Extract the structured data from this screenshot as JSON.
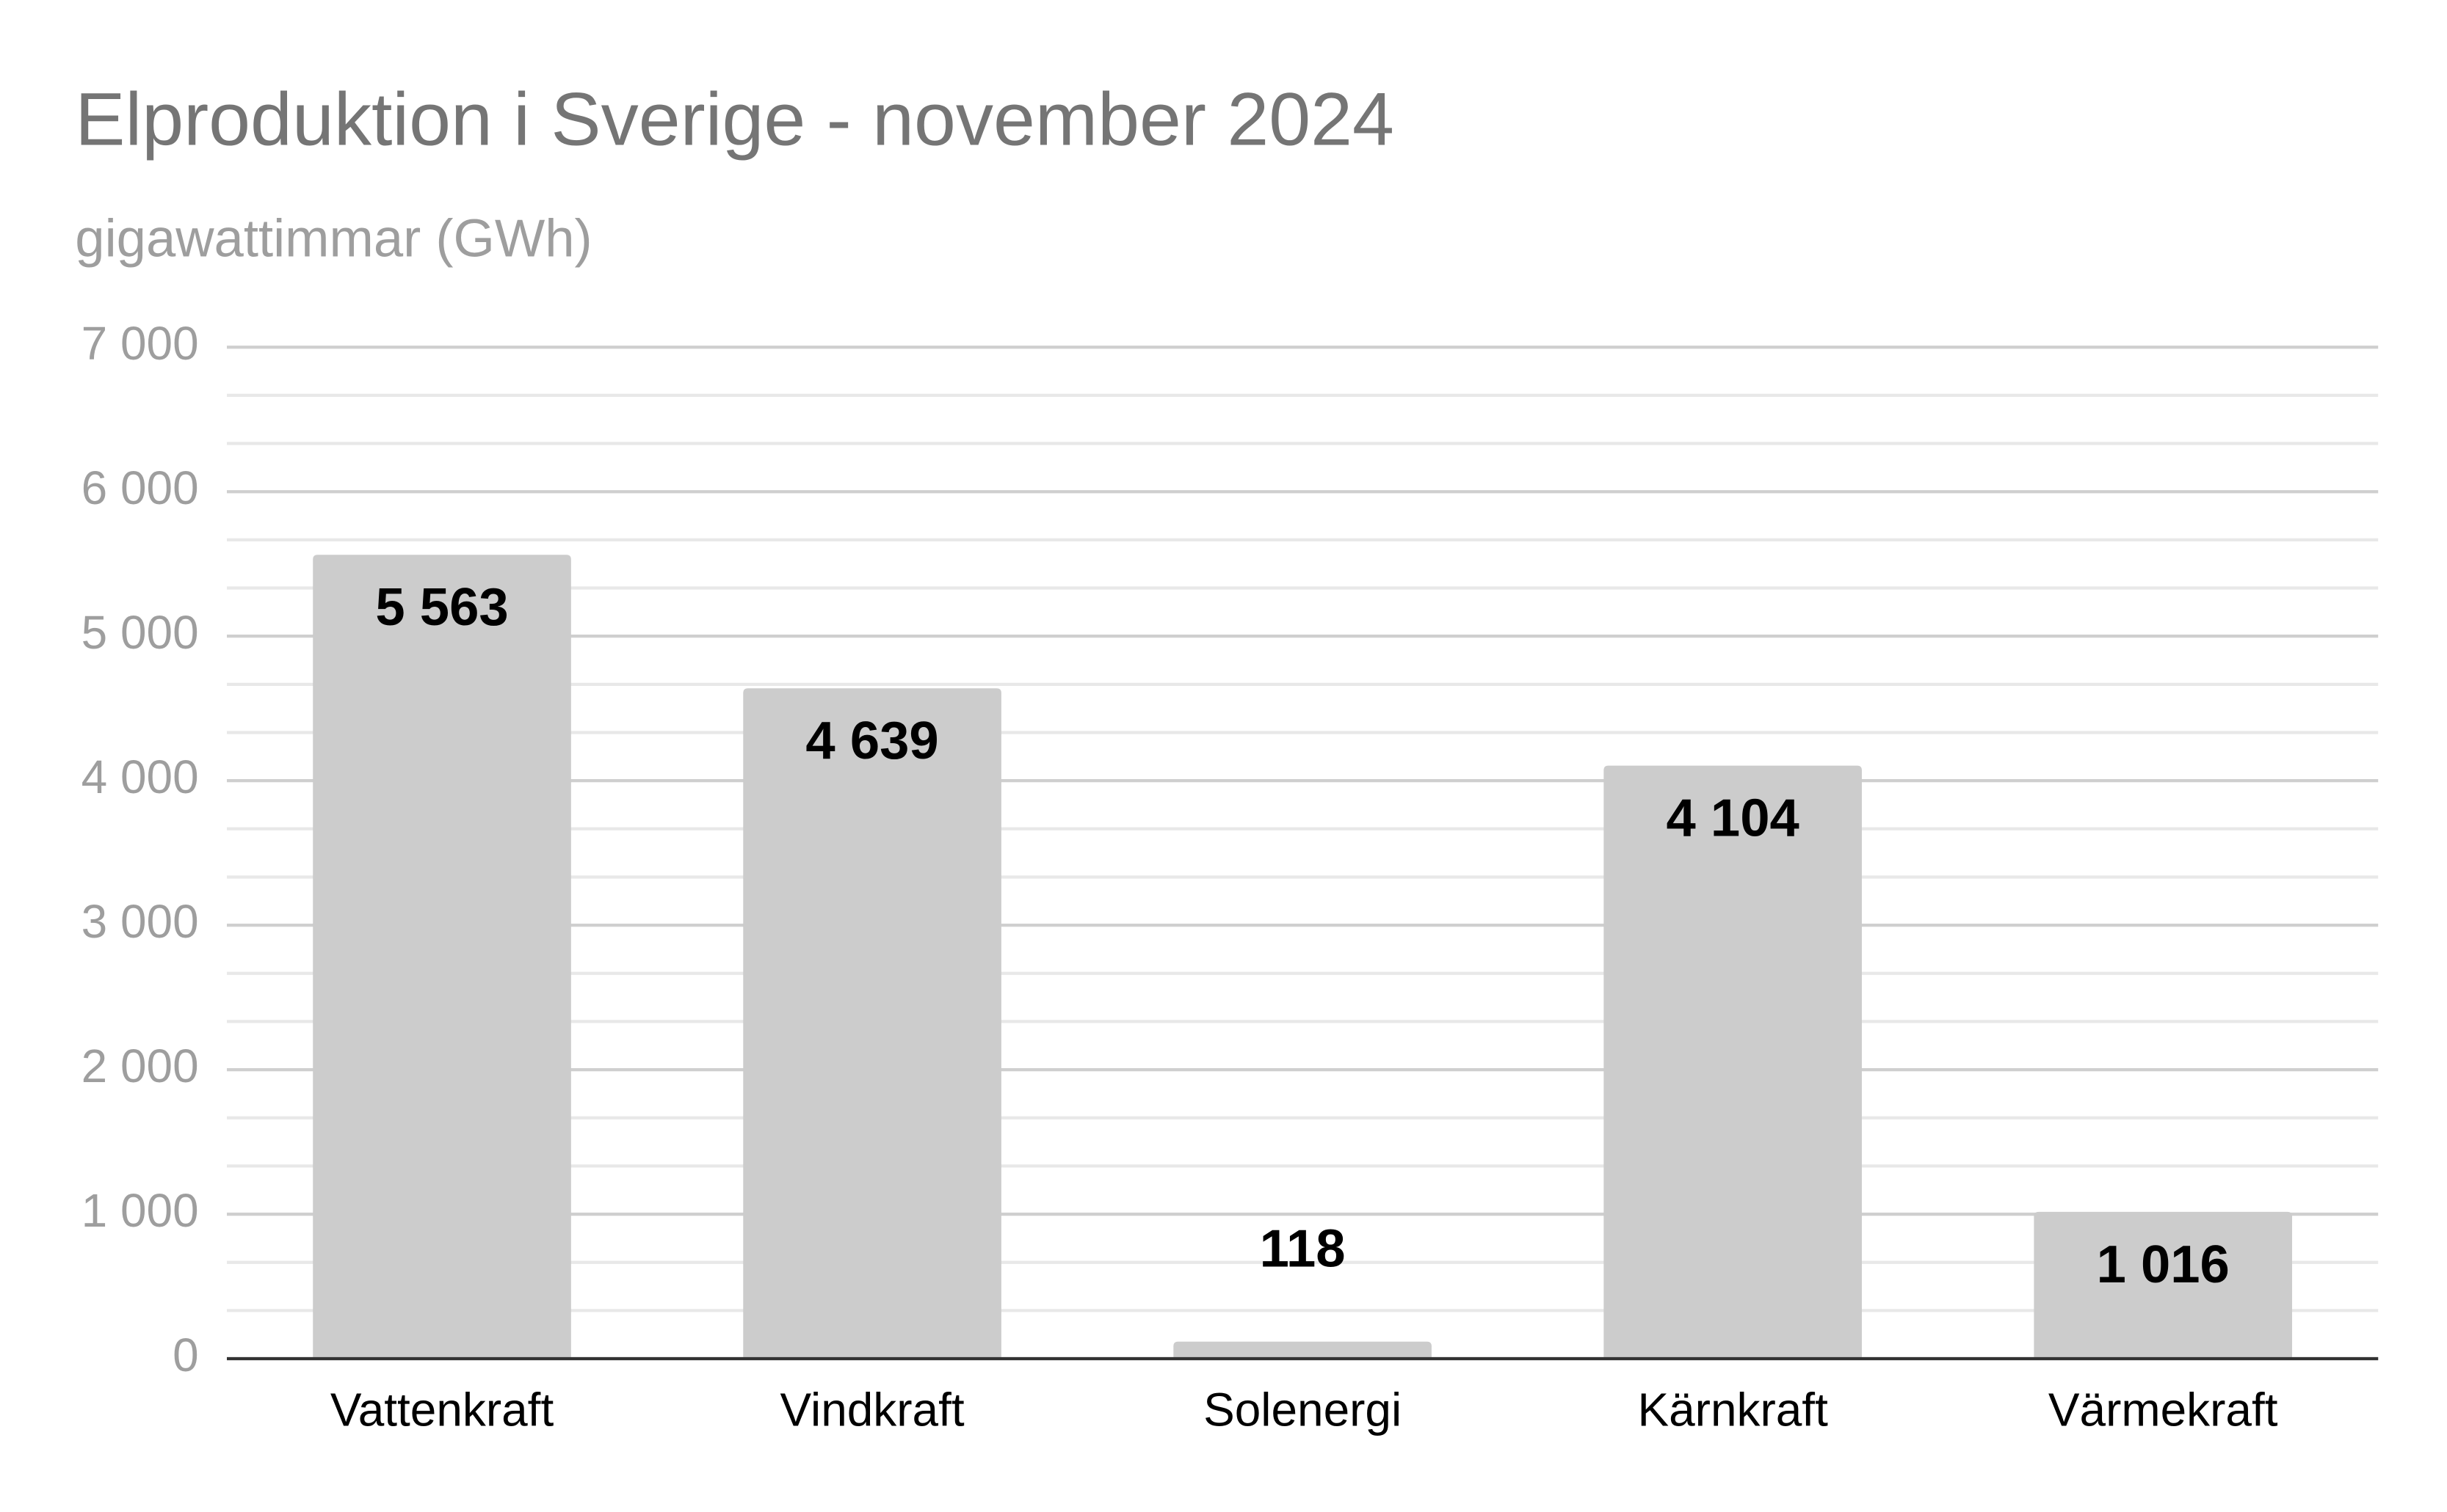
{
  "chart_data": {
    "type": "bar",
    "title": "Elproduktion i Sverige - november 2024",
    "subtitle": "gigawattimmar (GWh)",
    "categories": [
      "Vattenkraft",
      "Vindkraft",
      "Solenergi",
      "Kärnkraft",
      "Värmekraft"
    ],
    "values": [
      5563,
      4639,
      118,
      4104,
      1016
    ],
    "value_labels": [
      "5 563",
      "4 639",
      "118",
      "4 104",
      "1 016"
    ],
    "color": "#cccccc",
    "ylim": [
      0,
      7000
    ],
    "yticks": [
      0,
      {
        "value": 1000,
        "label": "1 000"
      },
      {
        "value": 2000,
        "label": "2 000"
      },
      {
        "value": 3000,
        "label": "3 000"
      },
      {
        "value": 4000,
        "label": "4 000"
      },
      {
        "value": 5000,
        "label": "5 000"
      },
      {
        "value": 6000,
        "label": "6 000"
      },
      {
        "value": 7000,
        "label": "7 000"
      }
    ],
    "grid": true,
    "minor_grid_per_interval": 2
  }
}
